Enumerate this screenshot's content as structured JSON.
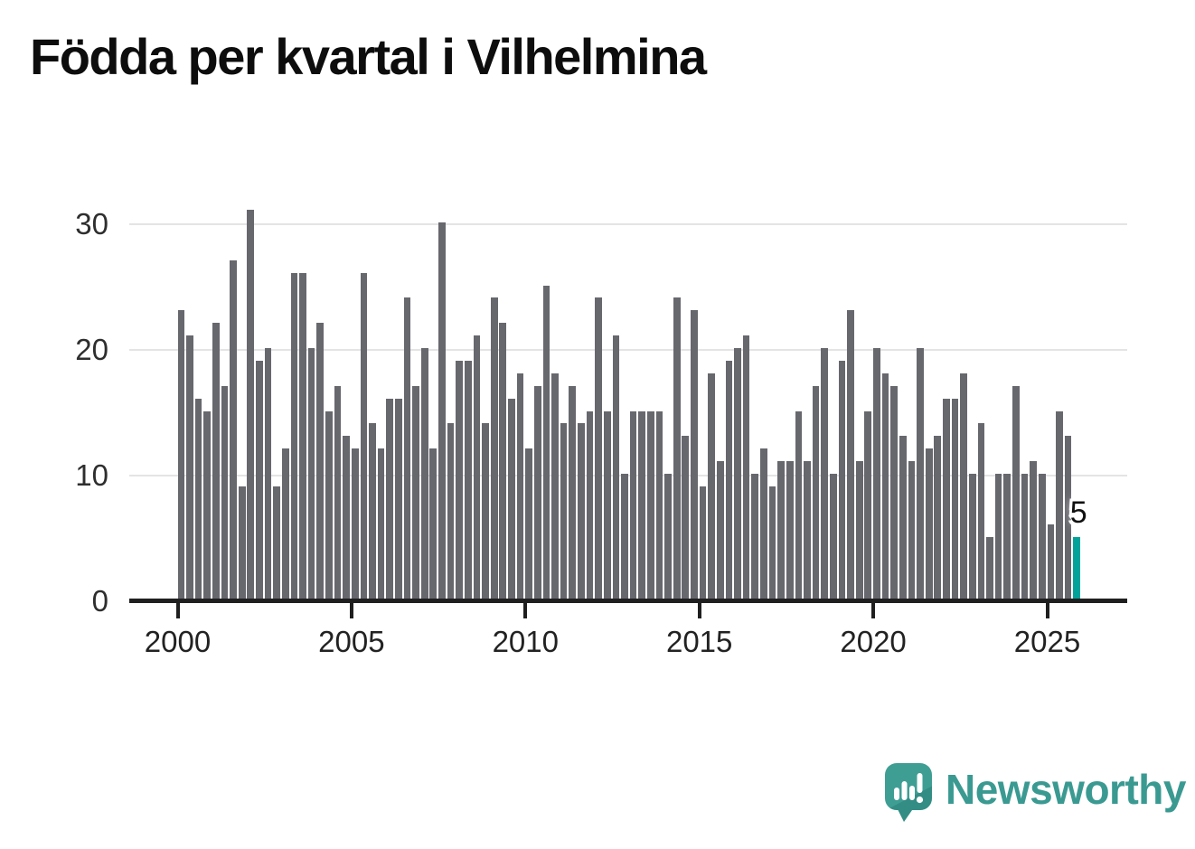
{
  "title": "Födda per kvartal i Vilhelmina",
  "chart_data": {
    "type": "bar",
    "title": "Födda per kvartal i Vilhelmina",
    "xlabel": "",
    "ylabel": "",
    "x_start_year": 2000,
    "quarters_per_year": 4,
    "series": [
      {
        "name": "Födda per kvartal",
        "values": [
          23,
          21,
          16,
          15,
          22,
          17,
          27,
          9,
          31,
          19,
          20,
          9,
          12,
          26,
          26,
          20,
          22,
          15,
          17,
          13,
          12,
          26,
          14,
          12,
          16,
          16,
          24,
          17,
          20,
          12,
          30,
          14,
          19,
          19,
          21,
          14,
          24,
          22,
          16,
          18,
          12,
          17,
          25,
          18,
          14,
          17,
          14,
          15,
          24,
          15,
          21,
          10,
          15,
          15,
          15,
          15,
          10,
          24,
          13,
          23,
          9,
          18,
          11,
          19,
          20,
          21,
          10,
          12,
          9,
          11,
          11,
          15,
          11,
          17,
          20,
          10,
          19,
          23,
          11,
          15,
          20,
          18,
          17,
          13,
          11,
          20,
          12,
          13,
          16,
          16,
          18,
          10,
          14,
          5,
          10,
          10,
          17,
          10,
          11,
          10,
          6,
          15,
          13,
          5
        ]
      }
    ],
    "x_tick_years": [
      2000,
      2005,
      2010,
      2015,
      2020,
      2025
    ],
    "x_tick_labels": [
      "2000",
      "2005",
      "2010",
      "2015",
      "2020",
      "2025"
    ],
    "y_ticks": [
      0,
      10,
      20,
      30
    ],
    "y_tick_labels": [
      "0",
      "10",
      "20",
      "30"
    ],
    "ylim": [
      0,
      31
    ],
    "grid": "horizontal",
    "legend_position": "none",
    "bar_color": "#67676e",
    "highlight_color": "#00a29a",
    "highlight_index": 103,
    "annotation": {
      "text": "5",
      "index": 103
    }
  },
  "branding": {
    "logo_text": "Newsworthy",
    "logo_color": "#3a9a92",
    "logo_icon": "speech-bubble-bar-chart-icon"
  }
}
